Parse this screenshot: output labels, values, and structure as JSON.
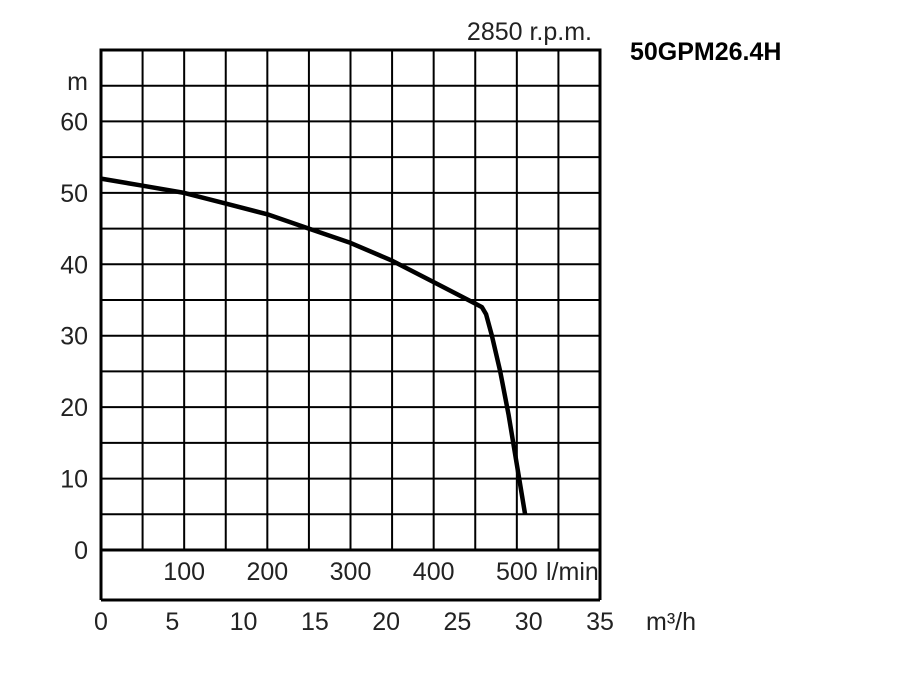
{
  "chart_data": {
    "type": "line",
    "model": "50GPM26.4H",
    "speed": "2850 r.p.m.",
    "y_unit": "m",
    "x_unit_lmin": "l/min",
    "x_unit_m3h": "m³/h",
    "ylim": [
      0,
      70
    ],
    "xlim_m3h": [
      0,
      35
    ],
    "xlim_lmin": [
      0,
      600
    ],
    "grid": true,
    "y_ticks": [
      0,
      10,
      20,
      30,
      40,
      50,
      60
    ],
    "y_tick_labels": [
      "0",
      "10",
      "20",
      "30",
      "40",
      "50",
      "60"
    ],
    "x_ticks_lmin": [
      100,
      200,
      300,
      400,
      500
    ],
    "x_tick_labels_lmin": [
      "100",
      "200",
      "300",
      "400",
      "500"
    ],
    "x_ticks_m3h": [
      0,
      5,
      10,
      15,
      20,
      25,
      30,
      35
    ],
    "x_tick_labels_m3h": [
      "0",
      "5",
      "10",
      "15",
      "20",
      "25",
      "30",
      "35"
    ],
    "series": [
      {
        "x_lmin": [
          0,
          50,
          100,
          150,
          200,
          250,
          300,
          350,
          400,
          450,
          458,
          463,
          470,
          480,
          490,
          500,
          510
        ],
        "y": [
          52,
          51,
          50,
          48.5,
          47,
          45,
          43,
          40.5,
          37.5,
          34.5,
          34,
          33,
          30,
          25,
          19,
          12,
          5
        ]
      }
    ]
  }
}
